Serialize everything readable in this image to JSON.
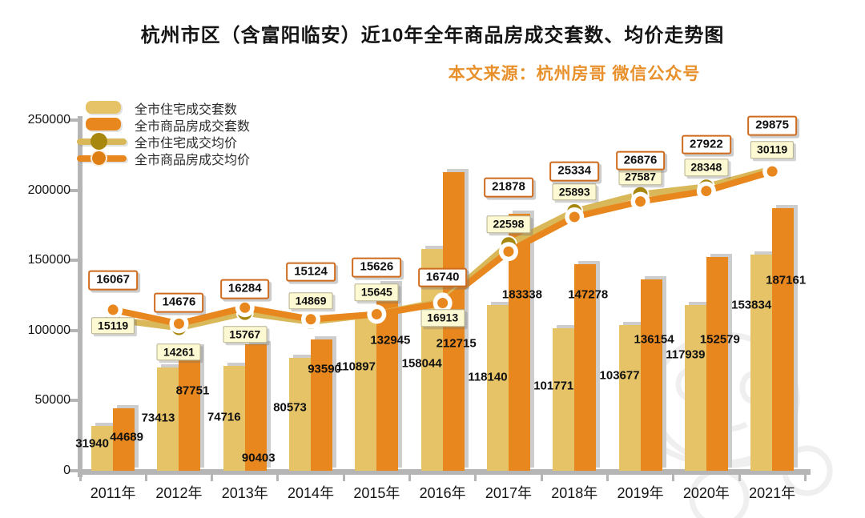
{
  "chart_data": {
    "type": "bar+line combo",
    "title": "杭州市区（含富阳临安）近10年全年商品房成交套数、均价走势图",
    "source_note": "本文来源：杭州房哥 微信公众号",
    "categories": [
      "2011年",
      "2012年",
      "2013年",
      "2014年",
      "2015年",
      "2016年",
      "2017年",
      "2018年",
      "2019年",
      "2020年",
      "2021年"
    ],
    "series": [
      {
        "name": "全市住宅成交套数",
        "type": "bar",
        "axis": "left",
        "color": "#E7C368",
        "values": [
          31940,
          73413,
          74716,
          80573,
          110897,
          158044,
          118140,
          101771,
          103677,
          117939,
          153834
        ]
      },
      {
        "name": "全市商品房成交套数",
        "type": "bar",
        "axis": "left",
        "color": "#E8871E",
        "values": [
          44689,
          87751,
          90403,
          93590,
          132945,
          212715,
          183338,
          147278,
          136154,
          152579,
          187161
        ]
      },
      {
        "name": "全市住宅成交均价",
        "type": "line",
        "axis": "right-hidden",
        "line_color": "#D9B85A",
        "marker_color": "#A8870E",
        "label_style": "yellow-tag",
        "values": [
          15119,
          14261,
          15767,
          14869,
          15645,
          16913,
          22598,
          25893,
          27587,
          28348,
          30119
        ]
      },
      {
        "name": "全市商品房成交均价",
        "type": "line",
        "axis": "right-hidden",
        "line_color": "#E8871E",
        "marker_color": "#E8871E",
        "label_style": "white-box-orange-border",
        "values": [
          16067,
          14676,
          16284,
          15124,
          15626,
          16740,
          21878,
          25334,
          26876,
          27922,
          29875
        ]
      }
    ],
    "left_axis": {
      "ticks": [
        0,
        50000,
        100000,
        150000,
        200000,
        250000
      ],
      "range": [
        0,
        250000
      ]
    },
    "right_axis": {
      "visible": false,
      "range": [
        0,
        35000
      ]
    },
    "legend_position": "top-left",
    "grid": false,
    "colors": {
      "bar_shadow": "#cdcdcd",
      "axis": "#b5b5b5",
      "price_box_border": "#cf6b1e",
      "price_tag_bg": "#fdf9d2",
      "title_text": "#141414",
      "source_text": "#e8912c",
      "watermark": "#efefef"
    },
    "layout_hints": {
      "boxed_label_dy": [
        -37,
        -26,
        -23,
        -59,
        -58,
        -32,
        -80,
        -57,
        -51,
        -58,
        -57
      ],
      "yellow_label_dy": [
        8,
        30,
        27,
        -26,
        -27,
        21,
        -25,
        -24,
        -22,
        -24,
        -24
      ],
      "res_bar_label_h": [
        34,
        66,
        67,
        79,
        130,
        134,
        117,
        106,
        119,
        145,
        207
      ],
      "com_bar_label_h": [
        42,
        100,
        16,
        127,
        163,
        159,
        220,
        220,
        164,
        164,
        238
      ]
    }
  }
}
